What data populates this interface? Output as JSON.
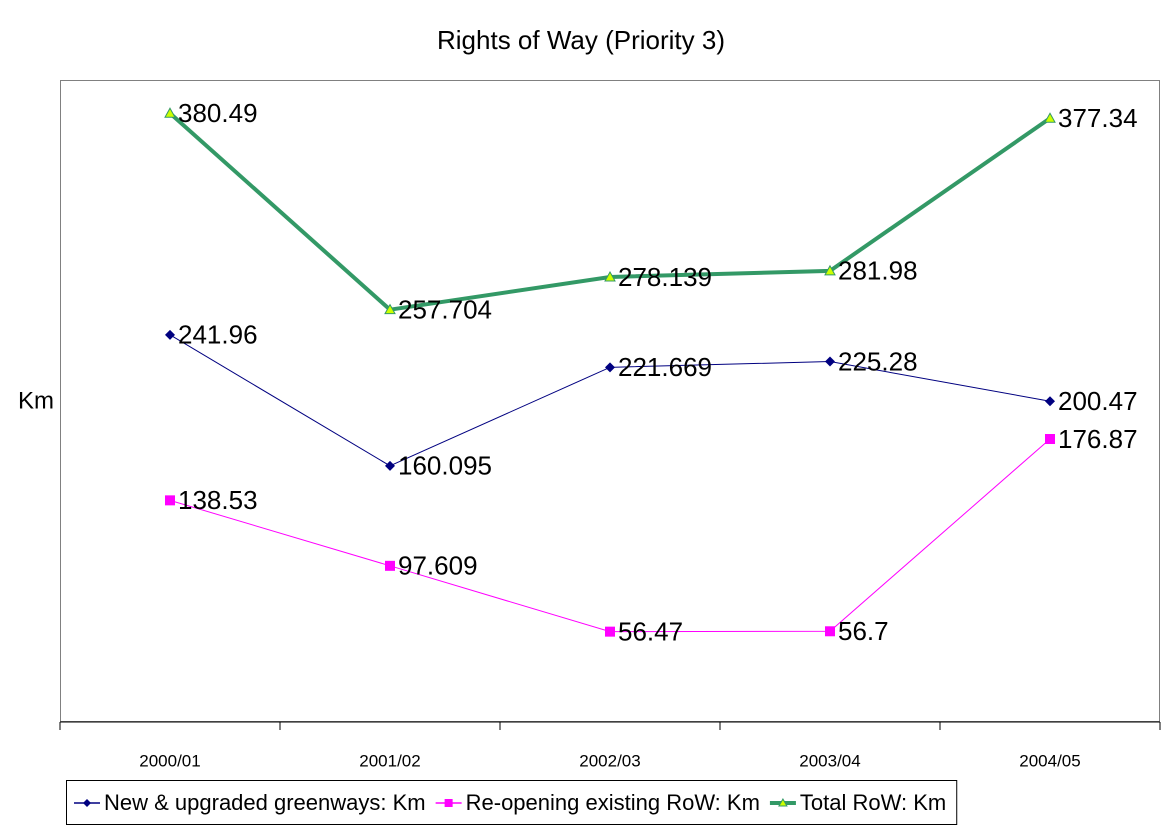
{
  "chart_data": {
    "type": "line",
    "title": "Rights of Way (Priority 3)",
    "y_label": "Km",
    "categories": [
      "2000/01",
      "2001/02",
      "2002/03",
      "2003/04",
      "2004/05"
    ],
    "series": [
      {
        "name": "New & upgraded greenways: Km",
        "color": "#000080",
        "marker": "diamond",
        "values": [
          241.96,
          160.095,
          221.669,
          225.28,
          200.47
        ]
      },
      {
        "name": "Re-opening existing RoW: Km",
        "color": "#ff00ff",
        "marker": "square",
        "values": [
          138.53,
          97.609,
          56.47,
          56.7,
          176.87
        ]
      },
      {
        "name": "Total RoW: Km",
        "color": "#339966",
        "marker": "triangle",
        "values": [
          380.49,
          257.704,
          278.139,
          281.98,
          377.34
        ]
      }
    ],
    "ylim": [
      0,
      400
    ],
    "grid": false,
    "legend": "bottom"
  }
}
